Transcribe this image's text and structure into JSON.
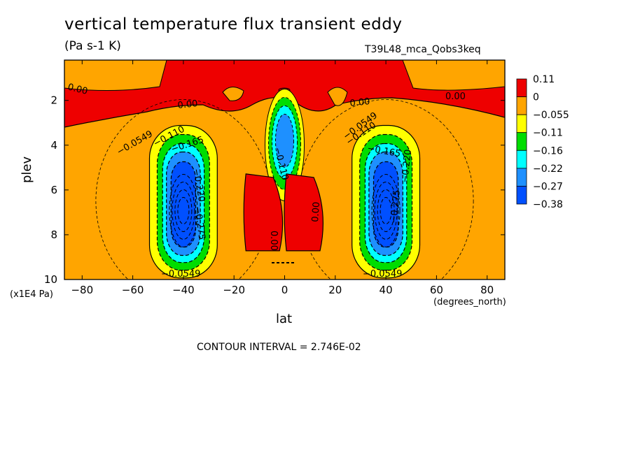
{
  "chart_data": {
    "type": "heatmap",
    "title": "vertical temperature flux transient eddy",
    "subtitle": "(Pa s-1 K)",
    "run_label": "T39L48_mca_Qobs3keq",
    "xlabel": "lat",
    "ylabel": "plev",
    "x_units": "(degrees_north)",
    "y_units": "(x1E4 Pa)",
    "xlim": [
      -87,
      87
    ],
    "ylim": [
      10,
      0.2
    ],
    "x_ticks": [
      -80,
      -60,
      -40,
      -20,
      0,
      20,
      40,
      60,
      80
    ],
    "y_ticks": [
      2,
      4,
      6,
      8,
      10
    ],
    "contour_interval_text": "CONTOUR INTERVAL = 2.746E-02",
    "legend": {
      "labels": [
        "0.11",
        "0",
        "−0.055",
        "−0.11",
        "−0.16",
        "−0.22",
        "−0.27",
        "−0.38"
      ],
      "colors": [
        "#ee0000",
        "#ffa500",
        "#ffff00",
        "#00dd00",
        "#00ffff",
        "#1e90ff",
        "#0050ff"
      ]
    },
    "fields": [
      {
        "lat": -40,
        "plev": 6.8,
        "min": -0.38,
        "level": 6
      },
      {
        "lat": 40,
        "plev": 6.8,
        "min": -0.38,
        "level": 6
      },
      {
        "lat": 0,
        "plev": 3.8,
        "min": -0.27,
        "level": 5
      },
      {
        "lat": -7,
        "plev": 7.0,
        "value": 0.02,
        "level": 0
      },
      {
        "lat": 9,
        "plev": 7.0,
        "value": 0.02,
        "level": 0
      }
    ],
    "contour_labels": [
      "0.00",
      "0.00",
      "0.00",
      "0.00",
      "0.00",
      "0.00",
      "−0.0549",
      "−0.110",
      "−0.165",
      "−0.220",
      "−0.275",
      "−0.0549",
      "−0.0549",
      "−0.110",
      "−0.165",
      "−0.275",
      "−0.220",
      "−0.0549",
      "−0.110"
    ]
  }
}
